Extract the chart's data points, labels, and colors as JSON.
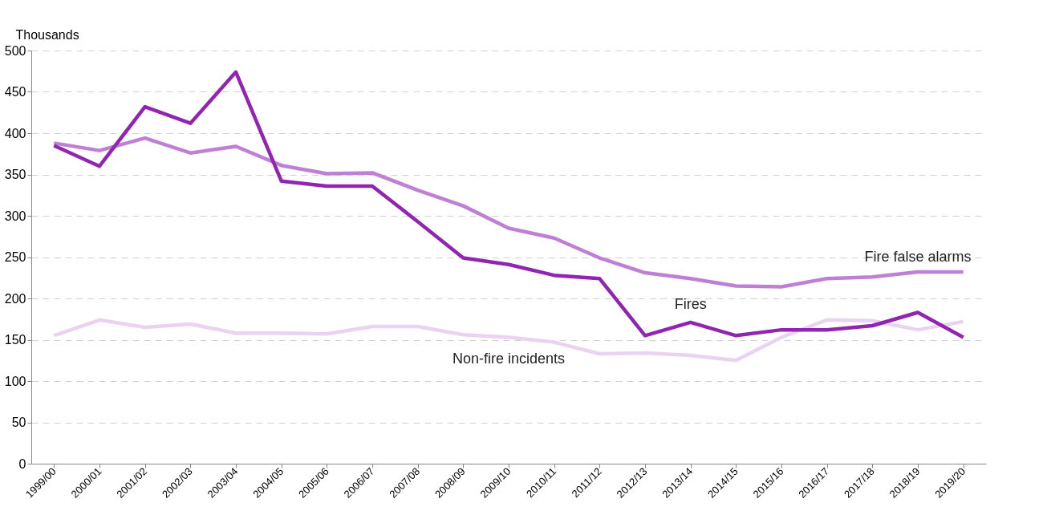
{
  "chart_data": {
    "type": "line",
    "ylabel": "Thousands",
    "categories": [
      "1999/00",
      "2000/01",
      "2001/02",
      "2002/03",
      "2003/04",
      "2004/05",
      "2005/06",
      "2006/07",
      "2007/08",
      "2008/09",
      "2009/10",
      "2010/11",
      "2011/12",
      "2012/13",
      "2013/14",
      "2014/15",
      "2015/16",
      "2016/17",
      "2017/18",
      "2018/19",
      "2019/20"
    ],
    "series": [
      {
        "name": "Non-fire incidents",
        "color": "#ead3f0",
        "values": [
          155,
          174,
          165,
          169,
          158,
          158,
          157,
          166,
          166,
          156,
          153,
          147,
          133,
          134,
          131,
          125,
          153,
          174,
          173,
          162,
          172
        ]
      },
      {
        "name": "Fire false alarms",
        "color": "#bf7fd4",
        "values": [
          388,
          379,
          394,
          376,
          384,
          361,
          351,
          352,
          331,
          312,
          285,
          273,
          249,
          231,
          224,
          215,
          214,
          224,
          226,
          232,
          232
        ]
      },
      {
        "name": "Fires",
        "color": "#9124b0",
        "values": [
          385,
          360,
          432,
          412,
          474,
          342,
          336,
          336,
          293,
          249,
          241,
          228,
          224,
          155,
          171,
          155,
          162,
          162,
          167,
          183,
          153
        ]
      }
    ],
    "ylim": [
      0,
      500
    ],
    "yticks": [
      0,
      50,
      100,
      150,
      200,
      250,
      300,
      350,
      400,
      450,
      500
    ],
    "grid": "y",
    "line_style": "solid",
    "marker": "none"
  }
}
